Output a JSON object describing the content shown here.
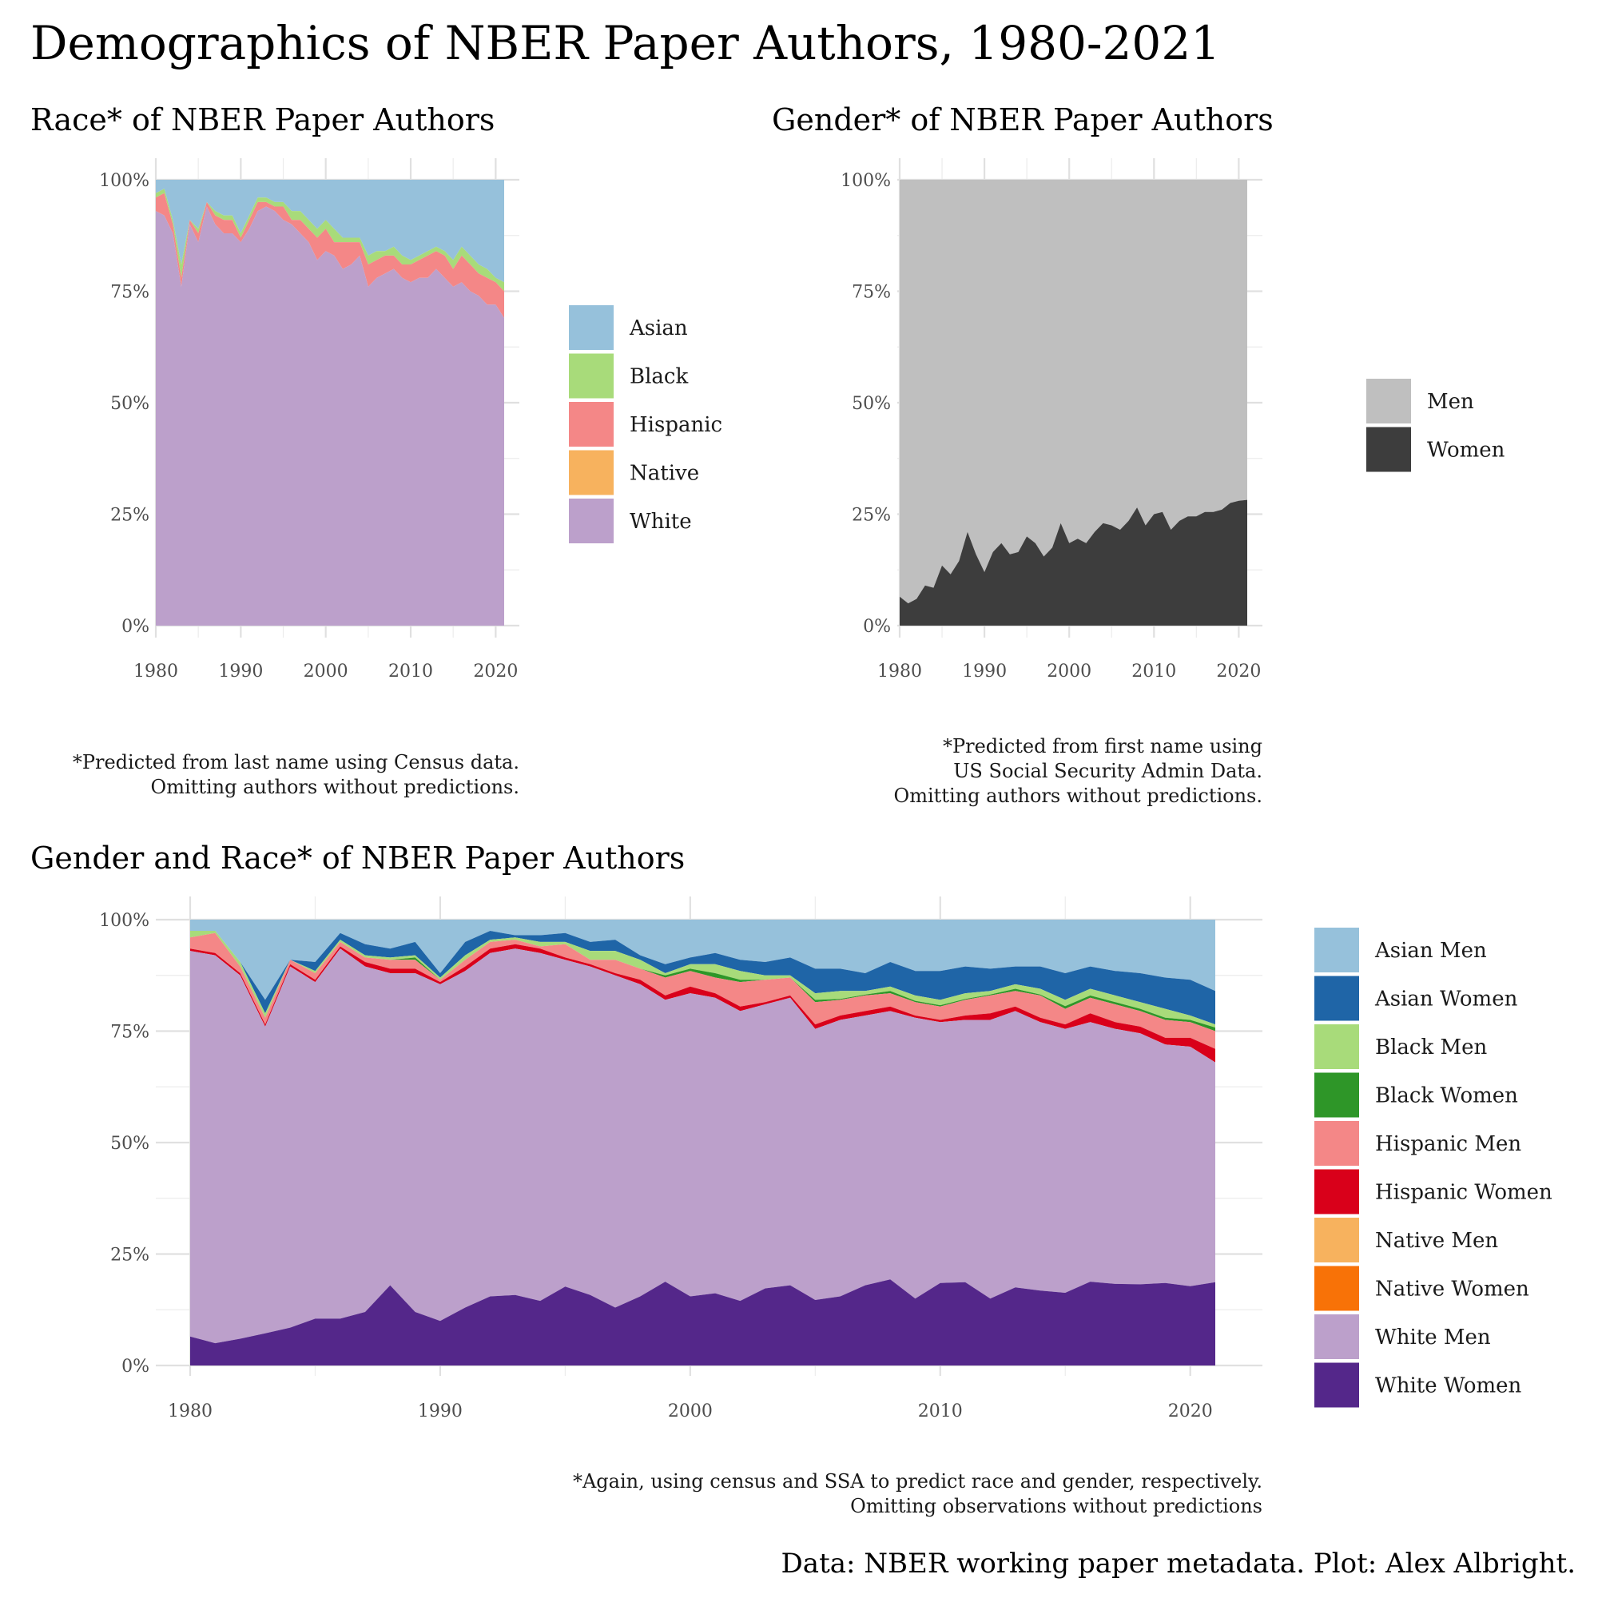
{
  "title": "Demographics of NBER Paper Authors, 1980-2021",
  "caption": "Data: NBER working paper metadata. Plot: Alex Albright.",
  "chart_data": [
    {
      "id": "race",
      "type": "area",
      "stacked": true,
      "title": "Race* of NBER Paper Authors",
      "note": [
        "*Predicted from last name using Census data.",
        "Omitting authors without predictions."
      ],
      "xlabel": "",
      "ylabel": "",
      "xlim": [
        1980,
        2021
      ],
      "ylim": [
        0,
        1
      ],
      "x_ticks": [
        "1980",
        "1990",
        "2000",
        "2010",
        "2020"
      ],
      "y_ticks": [
        "0%",
        "25%",
        "50%",
        "75%",
        "100%"
      ],
      "grid": true,
      "legend_position": "right",
      "legend_order": [
        "Asian",
        "Black",
        "Hispanic",
        "Native",
        "White"
      ],
      "colors": {
        "Asian": "#96C1DB",
        "Black": "#A8DB7A",
        "Hispanic": "#F48787",
        "Native": "#F7B25E",
        "White": "#BCA0CB"
      },
      "x": [
        1980,
        1981,
        1982,
        1983,
        1984,
        1985,
        1986,
        1987,
        1988,
        1989,
        1990,
        1991,
        1992,
        1993,
        1994,
        1995,
        1996,
        1997,
        1998,
        1999,
        2000,
        2001,
        2002,
        2003,
        2004,
        2005,
        2006,
        2007,
        2008,
        2009,
        2010,
        2011,
        2012,
        2013,
        2014,
        2015,
        2016,
        2017,
        2018,
        2019,
        2020,
        2021
      ],
      "cumulative": {
        "White": [
          0.93,
          0.92,
          0.88,
          0.76,
          0.9,
          0.86,
          0.94,
          0.9,
          0.88,
          0.88,
          0.86,
          0.89,
          0.93,
          0.94,
          0.93,
          0.91,
          0.9,
          0.88,
          0.86,
          0.82,
          0.84,
          0.83,
          0.8,
          0.81,
          0.83,
          0.76,
          0.78,
          0.79,
          0.8,
          0.78,
          0.77,
          0.78,
          0.78,
          0.8,
          0.78,
          0.76,
          0.77,
          0.75,
          0.74,
          0.72,
          0.72,
          0.69
        ],
        "Native": [
          0.93,
          0.92,
          0.88,
          0.76,
          0.9,
          0.86,
          0.94,
          0.9,
          0.88,
          0.88,
          0.86,
          0.89,
          0.93,
          0.94,
          0.93,
          0.91,
          0.9,
          0.88,
          0.86,
          0.82,
          0.84,
          0.83,
          0.8,
          0.81,
          0.83,
          0.76,
          0.78,
          0.79,
          0.8,
          0.78,
          0.77,
          0.78,
          0.78,
          0.8,
          0.78,
          0.76,
          0.77,
          0.75,
          0.74,
          0.72,
          0.72,
          0.69
        ],
        "Hispanic": [
          0.96,
          0.97,
          0.9,
          0.78,
          0.91,
          0.88,
          0.95,
          0.92,
          0.91,
          0.91,
          0.87,
          0.91,
          0.95,
          0.95,
          0.94,
          0.94,
          0.91,
          0.91,
          0.89,
          0.87,
          0.89,
          0.86,
          0.86,
          0.86,
          0.86,
          0.81,
          0.82,
          0.83,
          0.83,
          0.81,
          0.81,
          0.82,
          0.83,
          0.84,
          0.83,
          0.8,
          0.83,
          0.81,
          0.79,
          0.78,
          0.77,
          0.75
        ],
        "Black": [
          0.97,
          0.98,
          0.91,
          0.81,
          0.91,
          0.89,
          0.95,
          0.93,
          0.92,
          0.92,
          0.88,
          0.92,
          0.96,
          0.96,
          0.95,
          0.95,
          0.93,
          0.93,
          0.91,
          0.89,
          0.91,
          0.89,
          0.87,
          0.87,
          0.87,
          0.83,
          0.84,
          0.84,
          0.85,
          0.83,
          0.82,
          0.83,
          0.84,
          0.85,
          0.84,
          0.82,
          0.85,
          0.83,
          0.81,
          0.8,
          0.78,
          0.77
        ],
        "Asian": [
          1,
          1,
          1,
          1,
          1,
          1,
          1,
          1,
          1,
          1,
          1,
          1,
          1,
          1,
          1,
          1,
          1,
          1,
          1,
          1,
          1,
          1,
          1,
          1,
          1,
          1,
          1,
          1,
          1,
          1,
          1,
          1,
          1,
          1,
          1,
          1,
          1,
          1,
          1,
          1,
          1,
          1
        ]
      }
    },
    {
      "id": "gender",
      "type": "area",
      "stacked": true,
      "title": "Gender* of NBER Paper Authors",
      "note": [
        "*Predicted from first name using",
        "US Social Security Admin Data.",
        "Omitting authors without predictions."
      ],
      "xlabel": "",
      "ylabel": "",
      "xlim": [
        1980,
        2021
      ],
      "ylim": [
        0,
        1
      ],
      "x_ticks": [
        "1980",
        "1990",
        "2000",
        "2010",
        "2020"
      ],
      "y_ticks": [
        "0%",
        "25%",
        "50%",
        "75%",
        "100%"
      ],
      "grid": true,
      "legend_position": "right",
      "legend_order": [
        "Men",
        "Women"
      ],
      "colors": {
        "Men": "#BFBFBF",
        "Women": "#3D3D3D"
      },
      "x": [
        1980,
        1981,
        1982,
        1983,
        1984,
        1985,
        1986,
        1987,
        1988,
        1989,
        1990,
        1991,
        1992,
        1993,
        1994,
        1995,
        1996,
        1997,
        1998,
        1999,
        2000,
        2001,
        2002,
        2003,
        2004,
        2005,
        2006,
        2007,
        2008,
        2009,
        2010,
        2011,
        2012,
        2013,
        2014,
        2015,
        2016,
        2017,
        2018,
        2019,
        2020,
        2021
      ],
      "cumulative": {
        "Women": [
          0.065,
          0.05,
          0.06,
          0.09,
          0.085,
          0.135,
          0.115,
          0.145,
          0.21,
          0.16,
          0.12,
          0.165,
          0.185,
          0.16,
          0.165,
          0.2,
          0.185,
          0.155,
          0.175,
          0.23,
          0.185,
          0.195,
          0.185,
          0.21,
          0.23,
          0.225,
          0.215,
          0.235,
          0.265,
          0.225,
          0.25,
          0.255,
          0.215,
          0.235,
          0.245,
          0.245,
          0.255,
          0.255,
          0.26,
          0.275,
          0.28,
          0.282
        ],
        "Men": [
          1,
          1,
          1,
          1,
          1,
          1,
          1,
          1,
          1,
          1,
          1,
          1,
          1,
          1,
          1,
          1,
          1,
          1,
          1,
          1,
          1,
          1,
          1,
          1,
          1,
          1,
          1,
          1,
          1,
          1,
          1,
          1,
          1,
          1,
          1,
          1,
          1,
          1,
          1,
          1,
          1,
          1
        ]
      }
    },
    {
      "id": "gender_race",
      "type": "area",
      "stacked": true,
      "title": "Gender and Race* of NBER Paper Authors",
      "note": [
        "*Again, using census and SSA to predict race and gender, respectively.",
        "Omitting observations without predictions"
      ],
      "xlabel": "",
      "ylabel": "",
      "xlim": [
        1980,
        2021
      ],
      "ylim": [
        0,
        1
      ],
      "x_ticks": [
        "1980",
        "1990",
        "2000",
        "2010",
        "2020"
      ],
      "y_ticks": [
        "0%",
        "25%",
        "50%",
        "75%",
        "100%"
      ],
      "grid": true,
      "legend_position": "right",
      "legend_order": [
        "Asian Men",
        "Asian Women",
        "Black Men",
        "Black Women",
        "Hispanic Men",
        "Hispanic Women",
        "Native Men",
        "Native Women",
        "White Men",
        "White Women"
      ],
      "colors": {
        "Asian Men": "#96C1DB",
        "Asian Women": "#1F65A7",
        "Black Men": "#A8DB7A",
        "Black Women": "#2E9628",
        "Hispanic Men": "#F48787",
        "Hispanic Women": "#D9001A",
        "Native Men": "#F7B25E",
        "Native Women": "#F87207",
        "White Men": "#BCA0CB",
        "White Women": "#54278A"
      },
      "x": [
        1980,
        1981,
        1982,
        1983,
        1984,
        1985,
        1986,
        1987,
        1988,
        1989,
        1990,
        1991,
        1992,
        1993,
        1994,
        1995,
        1996,
        1997,
        1998,
        1999,
        2000,
        2001,
        2002,
        2003,
        2004,
        2005,
        2006,
        2007,
        2008,
        2009,
        2010,
        2011,
        2012,
        2013,
        2014,
        2015,
        2016,
        2017,
        2018,
        2019,
        2020,
        2021
      ],
      "cumulative": {
        "White Women": [
          0.065,
          0.05,
          0.06,
          0.072,
          0.085,
          0.105,
          0.105,
          0.12,
          0.18,
          0.12,
          0.1,
          0.13,
          0.155,
          0.158,
          0.145,
          0.177,
          0.158,
          0.13,
          0.155,
          0.188,
          0.155,
          0.162,
          0.145,
          0.173,
          0.18,
          0.147,
          0.155,
          0.18,
          0.193,
          0.15,
          0.185,
          0.187,
          0.15,
          0.175,
          0.168,
          0.163,
          0.188,
          0.183,
          0.182,
          0.185,
          0.178,
          0.187
        ],
        "White Men": [
          0.93,
          0.92,
          0.875,
          0.76,
          0.895,
          0.86,
          0.935,
          0.895,
          0.88,
          0.88,
          0.855,
          0.885,
          0.925,
          0.935,
          0.925,
          0.91,
          0.895,
          0.875,
          0.855,
          0.82,
          0.835,
          0.825,
          0.795,
          0.81,
          0.825,
          0.755,
          0.775,
          0.785,
          0.795,
          0.78,
          0.77,
          0.775,
          0.775,
          0.795,
          0.77,
          0.755,
          0.77,
          0.755,
          0.745,
          0.72,
          0.715,
          0.68
        ],
        "Native Women": [
          0.93,
          0.92,
          0.875,
          0.76,
          0.895,
          0.86,
          0.935,
          0.895,
          0.88,
          0.88,
          0.855,
          0.885,
          0.925,
          0.935,
          0.925,
          0.91,
          0.895,
          0.875,
          0.855,
          0.82,
          0.835,
          0.825,
          0.795,
          0.81,
          0.825,
          0.755,
          0.775,
          0.785,
          0.795,
          0.78,
          0.77,
          0.775,
          0.775,
          0.795,
          0.77,
          0.755,
          0.77,
          0.755,
          0.745,
          0.72,
          0.715,
          0.68
        ],
        "Native Men": [
          0.93,
          0.92,
          0.875,
          0.76,
          0.895,
          0.86,
          0.935,
          0.895,
          0.88,
          0.88,
          0.855,
          0.885,
          0.925,
          0.935,
          0.925,
          0.91,
          0.895,
          0.875,
          0.855,
          0.82,
          0.835,
          0.825,
          0.795,
          0.81,
          0.825,
          0.755,
          0.775,
          0.785,
          0.795,
          0.78,
          0.77,
          0.775,
          0.775,
          0.795,
          0.77,
          0.755,
          0.77,
          0.755,
          0.745,
          0.72,
          0.715,
          0.68
        ],
        "Hispanic Women": [
          0.935,
          0.925,
          0.88,
          0.765,
          0.9,
          0.865,
          0.94,
          0.905,
          0.89,
          0.89,
          0.86,
          0.895,
          0.935,
          0.945,
          0.935,
          0.915,
          0.9,
          0.88,
          0.865,
          0.83,
          0.85,
          0.835,
          0.805,
          0.815,
          0.83,
          0.765,
          0.785,
          0.795,
          0.805,
          0.785,
          0.775,
          0.785,
          0.79,
          0.805,
          0.78,
          0.765,
          0.79,
          0.77,
          0.76,
          0.735,
          0.735,
          0.71
        ],
        "Hispanic Men": [
          0.96,
          0.97,
          0.895,
          0.78,
          0.91,
          0.88,
          0.95,
          0.915,
          0.91,
          0.91,
          0.865,
          0.91,
          0.95,
          0.955,
          0.94,
          0.945,
          0.91,
          0.91,
          0.89,
          0.87,
          0.885,
          0.87,
          0.86,
          0.865,
          0.87,
          0.815,
          0.82,
          0.83,
          0.835,
          0.815,
          0.805,
          0.82,
          0.83,
          0.84,
          0.83,
          0.8,
          0.825,
          0.81,
          0.795,
          0.775,
          0.77,
          0.75
        ],
        "Black Women": [
          0.96,
          0.97,
          0.895,
          0.78,
          0.91,
          0.88,
          0.95,
          0.915,
          0.91,
          0.915,
          0.865,
          0.91,
          0.95,
          0.955,
          0.94,
          0.945,
          0.91,
          0.91,
          0.89,
          0.875,
          0.89,
          0.88,
          0.865,
          0.865,
          0.87,
          0.82,
          0.822,
          0.832,
          0.84,
          0.818,
          0.808,
          0.822,
          0.832,
          0.845,
          0.832,
          0.806,
          0.83,
          0.815,
          0.8,
          0.78,
          0.775,
          0.758
        ],
        "Black Men": [
          0.975,
          0.975,
          0.905,
          0.79,
          0.91,
          0.885,
          0.955,
          0.92,
          0.915,
          0.92,
          0.87,
          0.92,
          0.955,
          0.96,
          0.95,
          0.95,
          0.93,
          0.93,
          0.91,
          0.88,
          0.9,
          0.9,
          0.885,
          0.875,
          0.875,
          0.835,
          0.84,
          0.84,
          0.85,
          0.83,
          0.82,
          0.835,
          0.84,
          0.855,
          0.845,
          0.82,
          0.845,
          0.83,
          0.815,
          0.8,
          0.785,
          0.765
        ],
        "Asian Women": [
          0.975,
          0.975,
          0.905,
          0.82,
          0.91,
          0.905,
          0.97,
          0.945,
          0.935,
          0.95,
          0.88,
          0.95,
          0.975,
          0.965,
          0.965,
          0.97,
          0.95,
          0.955,
          0.92,
          0.9,
          0.915,
          0.925,
          0.91,
          0.905,
          0.915,
          0.89,
          0.89,
          0.88,
          0.905,
          0.885,
          0.885,
          0.895,
          0.89,
          0.895,
          0.895,
          0.88,
          0.895,
          0.885,
          0.88,
          0.87,
          0.865,
          0.84
        ],
        "Asian Men": [
          1,
          1,
          1,
          1,
          1,
          1,
          1,
          1,
          1,
          1,
          1,
          1,
          1,
          1,
          1,
          1,
          1,
          1,
          1,
          1,
          1,
          1,
          1,
          1,
          1,
          1,
          1,
          1,
          1,
          1,
          1,
          1,
          1,
          1,
          1,
          1,
          1,
          1,
          1,
          1,
          1,
          1
        ]
      }
    }
  ]
}
